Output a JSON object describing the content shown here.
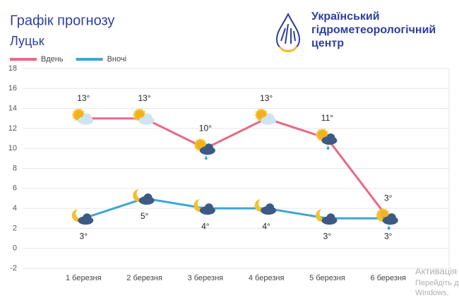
{
  "chart_data": {
    "type": "line",
    "title": "Графік прогнозу",
    "subtitle": "Луцьк",
    "categories": [
      "1 березня",
      "2 березня",
      "3 березня",
      "4 березня",
      "5 березня",
      "6 березня"
    ],
    "series": [
      {
        "name": "Вдень",
        "color": "#e8688a",
        "values": [
          13,
          13,
          10,
          13,
          11,
          3
        ],
        "value_labels": [
          "13°",
          "13°",
          "10°",
          "13°",
          "11°",
          "3°"
        ]
      },
      {
        "name": "Вночі",
        "color": "#3fa5d4",
        "values": [
          3,
          5,
          4,
          4,
          3,
          3
        ],
        "value_labels": [
          "3°",
          "5°",
          "4°",
          "4°",
          "3°",
          "3°"
        ]
      }
    ],
    "ylim": [
      -2,
      18
    ],
    "yticks": [
      -2,
      0,
      2,
      4,
      6,
      8,
      10,
      12,
      14,
      16,
      18
    ],
    "grid": true,
    "legend": "top-left"
  },
  "logo": {
    "lines": [
      "Український",
      "гідрометеорологічний",
      "центр"
    ]
  },
  "watermark": [
    "Активація",
    "Перейдіть до",
    "Windows."
  ]
}
